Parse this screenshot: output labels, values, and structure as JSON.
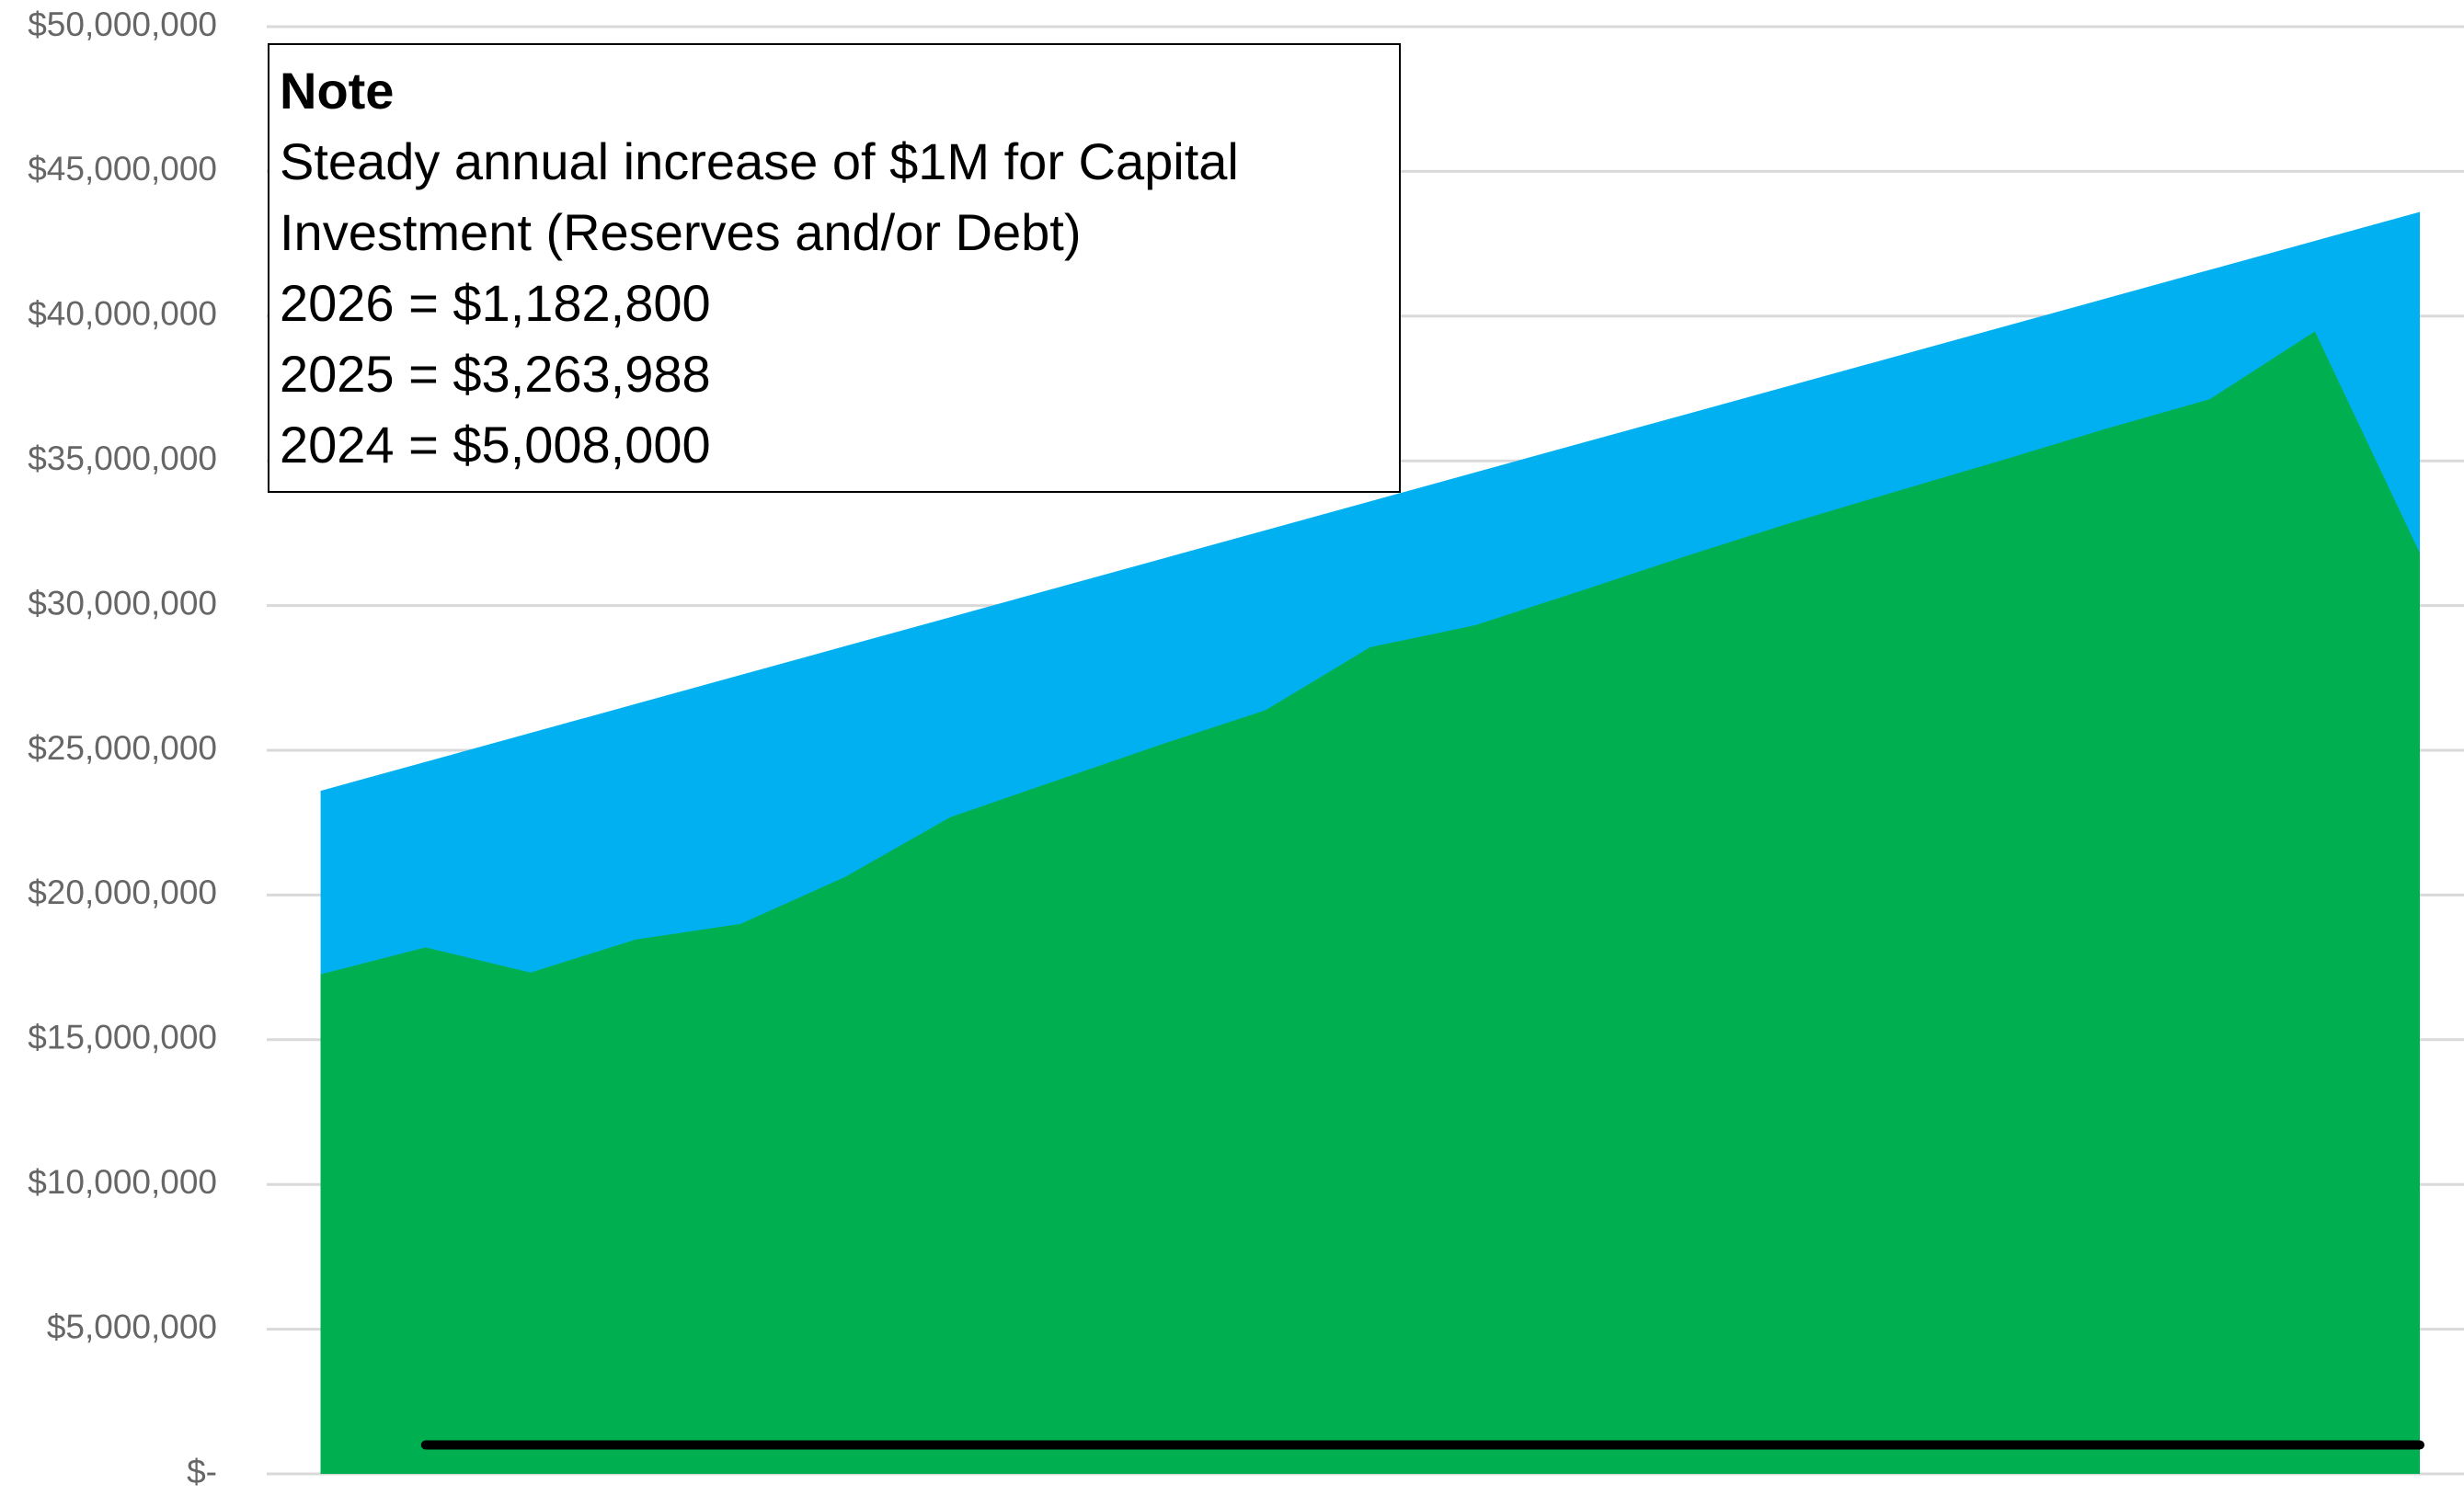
{
  "chart_data": {
    "type": "area",
    "categories": [
      null,
      null,
      null,
      null,
      null,
      null,
      null,
      null,
      null,
      null,
      null,
      null,
      null,
      null,
      null,
      null,
      null,
      null,
      null,
      null,
      null
    ],
    "series": [
      {
        "name": null,
        "type": "area",
        "color": "#00b0f0",
        "values": [
          23600000,
          24600000,
          25600000,
          26600000,
          27600000,
          28600000,
          29600000,
          30600000,
          31600000,
          32600000,
          33600000,
          34600000,
          35600000,
          36600000,
          37600000,
          38600000,
          39600000,
          40600000,
          41600000,
          42600000,
          43600000
        ]
      },
      {
        "name": null,
        "type": "area",
        "color": "#00b050",
        "values": [
          17260000,
          18190000,
          17320000,
          18460000,
          19000000,
          20630000,
          22690000,
          23940000,
          25190000,
          26380000,
          28560000,
          29320000,
          30500000,
          31700000,
          32850000,
          33930000,
          35000000,
          36100000,
          37130000,
          39470000,
          31810000
        ]
      },
      {
        "name": null,
        "type": "line",
        "color": "#000000",
        "values": [
          null,
          1000000,
          1000000,
          1000000,
          1000000,
          1000000,
          1000000,
          1000000,
          1000000,
          1000000,
          1000000,
          1000000,
          1000000,
          1000000,
          1000000,
          1000000,
          1000000,
          1000000,
          1000000,
          1000000,
          1000000
        ]
      }
    ],
    "ylim": [
      0,
      50000000
    ],
    "yticks": [
      {
        "value": 0,
        "label": "$-"
      },
      {
        "value": 5000000,
        "label": "$5,000,000"
      },
      {
        "value": 10000000,
        "label": "$10,000,000"
      },
      {
        "value": 15000000,
        "label": "$15,000,000"
      },
      {
        "value": 20000000,
        "label": "$20,000,000"
      },
      {
        "value": 25000000,
        "label": "$25,000,000"
      },
      {
        "value": 30000000,
        "label": "$30,000,000"
      },
      {
        "value": 35000000,
        "label": "$35,000,000"
      },
      {
        "value": 40000000,
        "label": "$40,000,000"
      },
      {
        "value": 45000000,
        "label": "$45,000,000"
      },
      {
        "value": 50000000,
        "label": "$50,000,000"
      }
    ],
    "grid": true,
    "annotation": {
      "title": "Note",
      "lines": [
        "Steady annual increase of $1M for Capital",
        "Investment (Reserves and/or Debt)",
        "2026 = $1,182,800",
        "2025 = $3,263,988",
        "2024 = $5,008,000"
      ]
    }
  }
}
